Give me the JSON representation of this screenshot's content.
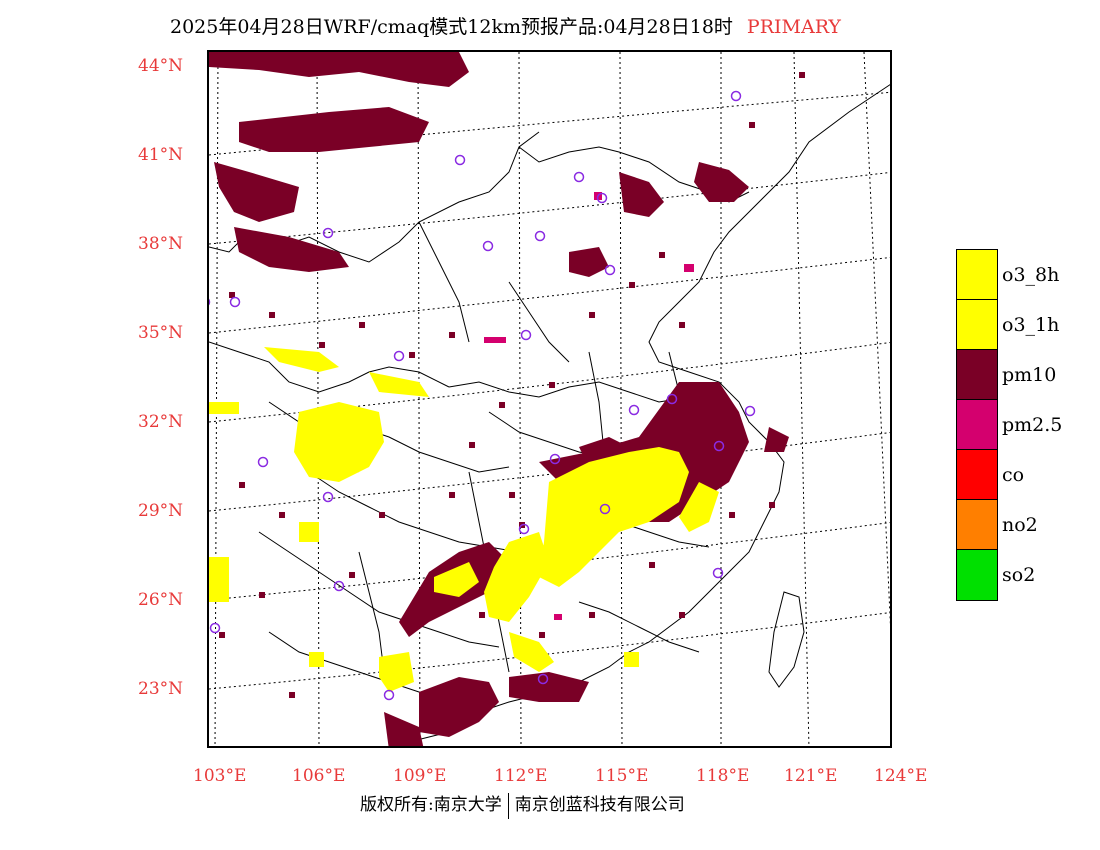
{
  "title": {
    "main": "2025年04月28日WRF/cmaq模式12km预报产品:04月28日18时",
    "tag": "PRIMARY"
  },
  "colors": {
    "o3_8h": "#ffff00",
    "o3_1h": "#ffff00",
    "pm10": "#7a0026",
    "pm25": "#d4006e",
    "co": "#ff0000",
    "no2": "#ff7f00",
    "so2": "#00e000",
    "axis_label": "#e83a3a",
    "station_marker": "#8a2be2"
  },
  "axes": {
    "lat_labels": [
      "44°N",
      "41°N",
      "38°N",
      "35°N",
      "32°N",
      "29°N",
      "26°N",
      "23°N"
    ],
    "lon_labels": [
      "103°E",
      "106°E",
      "109°E",
      "112°E",
      "115°E",
      "118°E",
      "121°E",
      "124°E"
    ]
  },
  "legend": [
    {
      "label": "o3_8h",
      "color": "#ffff00"
    },
    {
      "label": "o3_1h",
      "color": "#ffff00"
    },
    {
      "label": "pm10",
      "color": "#7a0026"
    },
    {
      "label": "pm2.5",
      "color": "#d4006e"
    },
    {
      "label": "co",
      "color": "#ff0000"
    },
    {
      "label": "no2",
      "color": "#ff7f00"
    },
    {
      "label": "so2",
      "color": "#00e000"
    }
  ],
  "footer": {
    "left": "版权所有:南京大学",
    "right": "南京创蓝科技有限公司"
  }
}
